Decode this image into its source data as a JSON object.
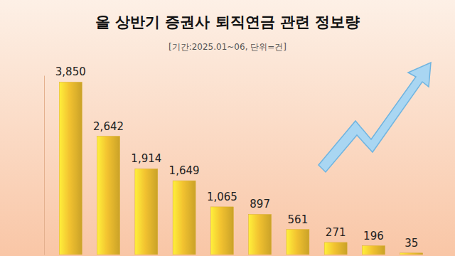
{
  "chart_data": {
    "type": "bar",
    "title": "올 상반기 증권사 퇴직연금 관련 정보량",
    "subtitle": "[기간:2025.01~06, 단위=건]",
    "categories": [
      null,
      null,
      null,
      null,
      null,
      null,
      null,
      null,
      null,
      null
    ],
    "values": [
      3850,
      2642,
      1914,
      1649,
      1065,
      897,
      561,
      271,
      196,
      35
    ],
    "value_labels": [
      "3,850",
      "2,642",
      "1,914",
      "1,649",
      "1,065",
      "897",
      "561",
      "271",
      "196",
      "35"
    ],
    "color": "#f2c230",
    "ylim": [
      0,
      4000
    ],
    "data_labels": true,
    "tick_labels": false,
    "grid": false
  }
}
